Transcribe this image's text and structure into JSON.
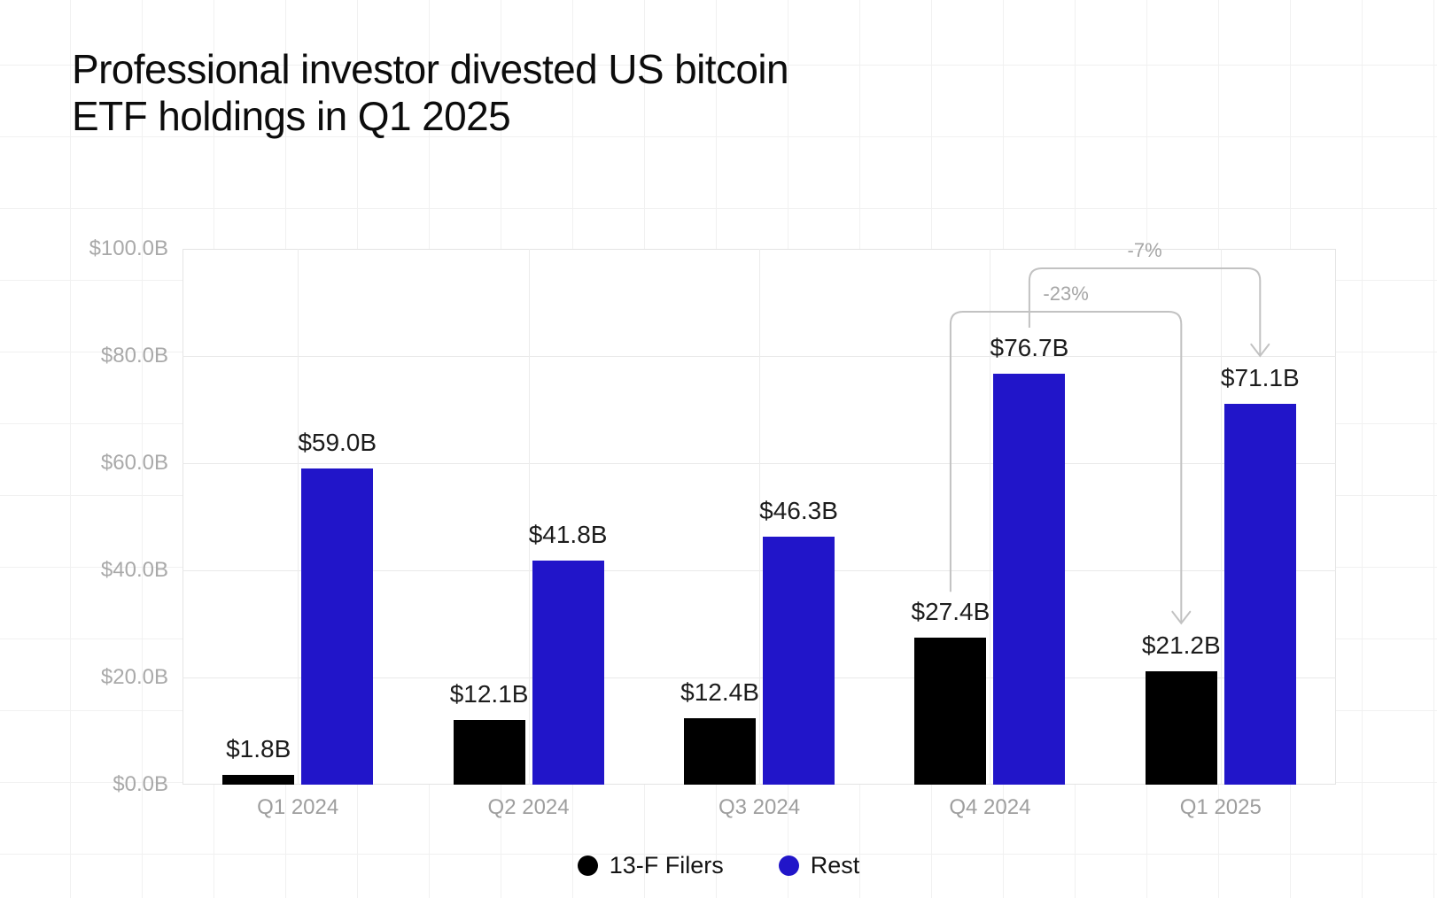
{
  "title": {
    "line1": "Professional investor divested US bitcoin",
    "line2": "ETF holdings in Q1 2025"
  },
  "chart_data": {
    "type": "bar",
    "categories": [
      "Q1 2024",
      "Q2 2024",
      "Q3 2024",
      "Q4 2024",
      "Q1 2025"
    ],
    "series": [
      {
        "name": "13-F Filers",
        "color": "#000000",
        "values": [
          1.8,
          12.1,
          12.4,
          27.4,
          21.2
        ],
        "labels": [
          "$1.8B",
          "$12.1B",
          "$12.4B",
          "$27.4B",
          "$21.2B"
        ]
      },
      {
        "name": "Rest",
        "color": "#2115c9",
        "values": [
          59.0,
          41.8,
          46.3,
          76.7,
          71.1
        ],
        "labels": [
          "$59.0B",
          "$41.8B",
          "$46.3B",
          "$76.7B",
          "$71.1B"
        ]
      }
    ],
    "y_ticks": [
      {
        "value": 0,
        "label": "$0.0B"
      },
      {
        "value": 20,
        "label": "$20.0B"
      },
      {
        "value": 40,
        "label": "$40.0B"
      },
      {
        "value": 60,
        "label": "$60.0B"
      },
      {
        "value": 80,
        "label": "$80.0B"
      },
      {
        "value": 100,
        "label": "$100.0B"
      }
    ],
    "ylim": [
      0,
      100
    ],
    "grid": true,
    "legend_position": "bottom",
    "annotations": [
      {
        "label": "-23%",
        "series": 0,
        "from_category": "Q4 2024",
        "to_category": "Q1 2025"
      },
      {
        "label": "-7%",
        "series": 1,
        "from_category": "Q4 2024",
        "to_category": "Q1 2025"
      }
    ],
    "colors": {
      "annotation_line": "#c2c2c2",
      "axis_text": "#a9a9a9",
      "value_text": "#1c1c1c"
    }
  }
}
